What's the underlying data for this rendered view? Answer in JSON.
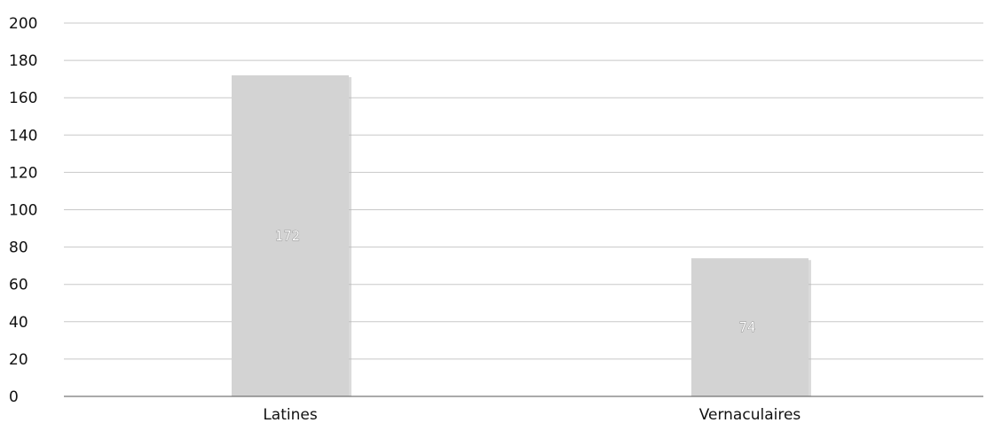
{
  "chart_data": {
    "type": "bar",
    "title": "",
    "xlabel": "",
    "ylabel": "",
    "categories": [
      "Latines",
      "Vernaculaires"
    ],
    "values": [
      172,
      74
    ],
    "data_labels": [
      "172",
      "74"
    ],
    "ylim": [
      0,
      200
    ],
    "yticks": [
      0,
      20,
      40,
      60,
      80,
      100,
      120,
      140,
      160,
      180,
      200
    ],
    "grid": true,
    "legend": "none",
    "colors": {
      "bar": "#d3d3d3",
      "bar_shadow": "#b8b8b8",
      "grid": "#c8c8c8",
      "axis": "#555555"
    }
  }
}
